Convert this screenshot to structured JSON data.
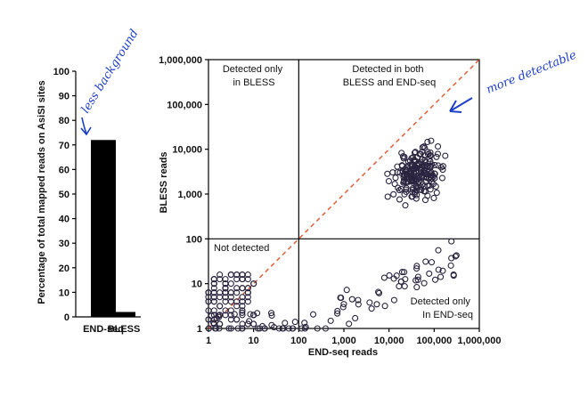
{
  "chart_data": [
    {
      "type": "bar",
      "categories": [
        "END-seq",
        "BLESS"
      ],
      "values": [
        72,
        2
      ],
      "ylabel": "Percentage of total mapped reads on AsiSI sites",
      "ylim": [
        0,
        100
      ],
      "yticks": [
        "0",
        "10",
        "20",
        "30",
        "40",
        "50",
        "60",
        "70",
        "80",
        "90",
        "100"
      ],
      "bar_color": "#000000",
      "annotation": "less background"
    },
    {
      "type": "scatter",
      "xlabel": "END-seq reads",
      "ylabel": "BLESS reads",
      "xscale": "log",
      "yscale": "log",
      "xlim": [
        1,
        1000000
      ],
      "ylim": [
        1,
        1000000
      ],
      "xticks": [
        "1",
        "10",
        "100",
        "1,000",
        "10,000",
        "100,000",
        "1,000,000"
      ],
      "yticks": [
        "1",
        "10",
        "100",
        "1,000",
        "10,000",
        "100,000",
        "1,000,000"
      ],
      "threshold_x": 100,
      "threshold_y": 100,
      "diagonal_color": "#e0562a",
      "marker_color": "#2b2540",
      "annotation": "more detectable",
      "quadrant_labels": {
        "top_left": [
          "Detected only",
          "in BLESS"
        ],
        "top_right": [
          "Detected in both",
          "BLESS and END-seq"
        ],
        "bottom_left": [
          "Not detected"
        ],
        "bottom_right": [
          "Detected only",
          "In END-seq"
        ]
      },
      "clusters": [
        {
          "region": "both",
          "n": 200,
          "x_log": [
            3.4,
            5.7
          ],
          "y_log": [
            2.4,
            4.5
          ]
        },
        {
          "region": "end_only",
          "n": 60,
          "x_log": [
            2.0,
            5.6
          ],
          "y_log": [
            0.0,
            2.3
          ]
        },
        {
          "region": "not_detected",
          "n": 110,
          "x_log": [
            0.0,
            1.0
          ],
          "y_log": [
            0.0,
            1.25
          ]
        },
        {
          "region": "axis_low",
          "n": 35,
          "x_log": [
            0.0,
            2.0
          ],
          "y_log": [
            0.0,
            0.35
          ]
        }
      ]
    }
  ]
}
